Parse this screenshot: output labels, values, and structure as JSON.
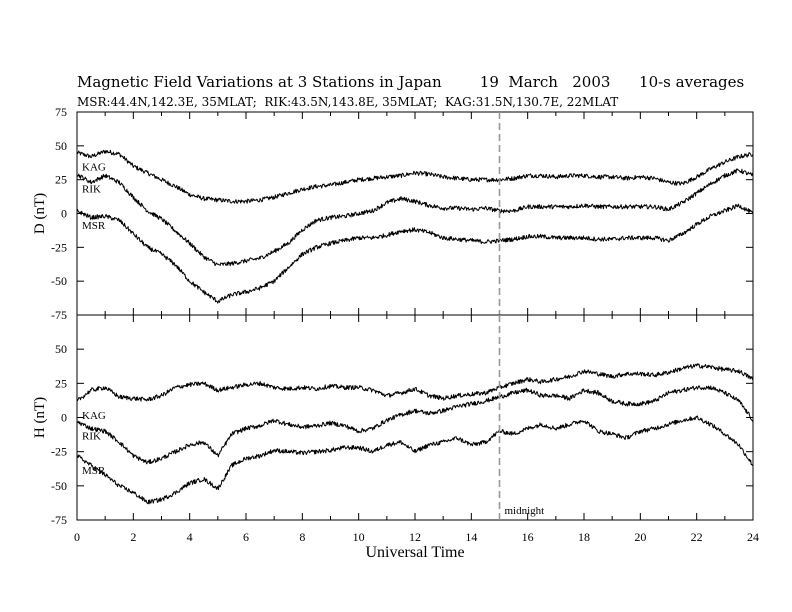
{
  "header": {
    "title": "Magnetic Field Variations at 3 Stations in Japan        19  March   2003      10-s averages",
    "subtitle": "MSR:44.4N,142.3E, 35MLAT;  RIK:43.5N,143.8E, 35MLAT;  KAG:31.5N,130.7E, 22MLAT"
  },
  "chart_data": [
    {
      "type": "line",
      "panel": "D",
      "ylabel": "D (nT)",
      "xlabel": "",
      "xlim": [
        0,
        24
      ],
      "ylim": [
        -75,
        75
      ],
      "yticks": [
        75,
        50,
        25,
        0,
        -25,
        -50,
        -75
      ],
      "x": [
        0,
        0.5,
        1,
        1.5,
        2,
        2.5,
        3,
        3.5,
        4,
        4.5,
        5,
        5.5,
        6,
        6.5,
        7,
        7.5,
        8,
        8.5,
        9,
        9.5,
        10,
        10.5,
        11,
        11.5,
        12,
        12.5,
        13,
        13.5,
        14,
        14.5,
        15,
        15.5,
        16,
        16.5,
        17,
        17.5,
        18,
        18.5,
        19,
        19.5,
        20,
        20.5,
        21,
        21.5,
        22,
        22.5,
        23,
        23.5,
        24
      ],
      "series": [
        {
          "name": "KAG",
          "label": "KAG",
          "values": [
            45,
            42,
            46,
            44,
            35,
            30,
            25,
            20,
            14,
            11,
            10,
            9,
            9,
            10,
            12,
            15,
            18,
            20,
            21,
            23,
            25,
            26,
            27,
            28,
            30,
            29,
            27,
            26,
            25,
            25,
            25,
            26,
            28,
            28,
            27,
            28,
            28,
            27,
            27,
            26,
            27,
            26,
            23,
            22,
            27,
            33,
            38,
            42,
            44
          ]
        },
        {
          "name": "RIK",
          "label": "RIK",
          "values": [
            29,
            23,
            28,
            23,
            12,
            2,
            -4,
            -13,
            -22,
            -32,
            -38,
            -37,
            -35,
            -33,
            -28,
            -22,
            -12,
            -5,
            -3,
            -2,
            0,
            2,
            8,
            11,
            9,
            6,
            4,
            4,
            3,
            4,
            2,
            2,
            5,
            5,
            5,
            5,
            6,
            5,
            5,
            5,
            5,
            5,
            3,
            8,
            15,
            22,
            28,
            32,
            28
          ]
        },
        {
          "name": "MSR",
          "label": "MSR",
          "values": [
            2,
            -3,
            -2,
            -5,
            -15,
            -25,
            -30,
            -38,
            -50,
            -58,
            -65,
            -60,
            -58,
            -55,
            -50,
            -40,
            -30,
            -25,
            -22,
            -20,
            -18,
            -18,
            -16,
            -13,
            -12,
            -14,
            -18,
            -19,
            -20,
            -21,
            -20,
            -19,
            -17,
            -17,
            -18,
            -18,
            -18,
            -19,
            -19,
            -18,
            -18,
            -18,
            -20,
            -15,
            -8,
            -2,
            2,
            6,
            0
          ]
        }
      ],
      "annotations": [
        "KAG",
        "RIK",
        "MSR"
      ]
    },
    {
      "type": "line",
      "panel": "H",
      "ylabel": "H (nT)",
      "xlabel": "Universal Time",
      "xlim": [
        0,
        24
      ],
      "ylim": [
        -75,
        75
      ],
      "yticks": [
        50,
        25,
        0,
        -25,
        -50,
        -75
      ],
      "xticks": [
        0,
        2,
        4,
        6,
        8,
        10,
        12,
        14,
        16,
        18,
        20,
        22,
        24
      ],
      "x": [
        0,
        0.5,
        1,
        1.5,
        2,
        2.5,
        3,
        3.5,
        4,
        4.5,
        5,
        5.5,
        6,
        6.5,
        7,
        7.5,
        8,
        8.5,
        9,
        9.5,
        10,
        10.5,
        11,
        11.5,
        12,
        12.5,
        13,
        13.5,
        14,
        14.5,
        15,
        15.5,
        16,
        16.5,
        17,
        17.5,
        18,
        18.5,
        19,
        19.5,
        20,
        20.5,
        21,
        21.5,
        22,
        22.5,
        23,
        23.5,
        24
      ],
      "series": [
        {
          "name": "KAG",
          "label": "KAG",
          "values": [
            12,
            20,
            22,
            15,
            14,
            13,
            16,
            22,
            24,
            25,
            20,
            22,
            24,
            25,
            22,
            21,
            22,
            21,
            23,
            22,
            22,
            20,
            16,
            18,
            21,
            16,
            14,
            16,
            17,
            18,
            22,
            25,
            28,
            26,
            28,
            30,
            34,
            32,
            30,
            32,
            32,
            31,
            33,
            36,
            38,
            37,
            35,
            34,
            28
          ]
        },
        {
          "name": "RIK",
          "label": "RIK",
          "values": [
            -3,
            -8,
            -10,
            -18,
            -28,
            -33,
            -30,
            -25,
            -20,
            -18,
            -28,
            -12,
            -8,
            -6,
            -2,
            -5,
            -7,
            -6,
            -4,
            -6,
            -10,
            -8,
            -2,
            2,
            5,
            3,
            5,
            8,
            10,
            12,
            15,
            18,
            20,
            16,
            16,
            14,
            20,
            18,
            12,
            10,
            10,
            12,
            18,
            20,
            22,
            22,
            18,
            12,
            -2
          ]
        },
        {
          "name": "MSR",
          "label": "MSR",
          "values": [
            -28,
            -35,
            -42,
            -50,
            -55,
            -62,
            -60,
            -55,
            -48,
            -45,
            -52,
            -35,
            -30,
            -28,
            -24,
            -25,
            -26,
            -25,
            -24,
            -22,
            -22,
            -25,
            -20,
            -18,
            -25,
            -20,
            -18,
            -15,
            -20,
            -18,
            -10,
            -12,
            -8,
            -5,
            -8,
            -5,
            -2,
            -10,
            -12,
            -15,
            -10,
            -8,
            -5,
            -2,
            0,
            -5,
            -12,
            -20,
            -35
          ]
        }
      ],
      "annotations": [
        "KAG",
        "RIK",
        "MSR"
      ]
    }
  ],
  "marker": {
    "x": 15,
    "label": "midnight"
  },
  "colors": {
    "trace": "#000000",
    "marker": "#999999",
    "frame": "#000000"
  }
}
